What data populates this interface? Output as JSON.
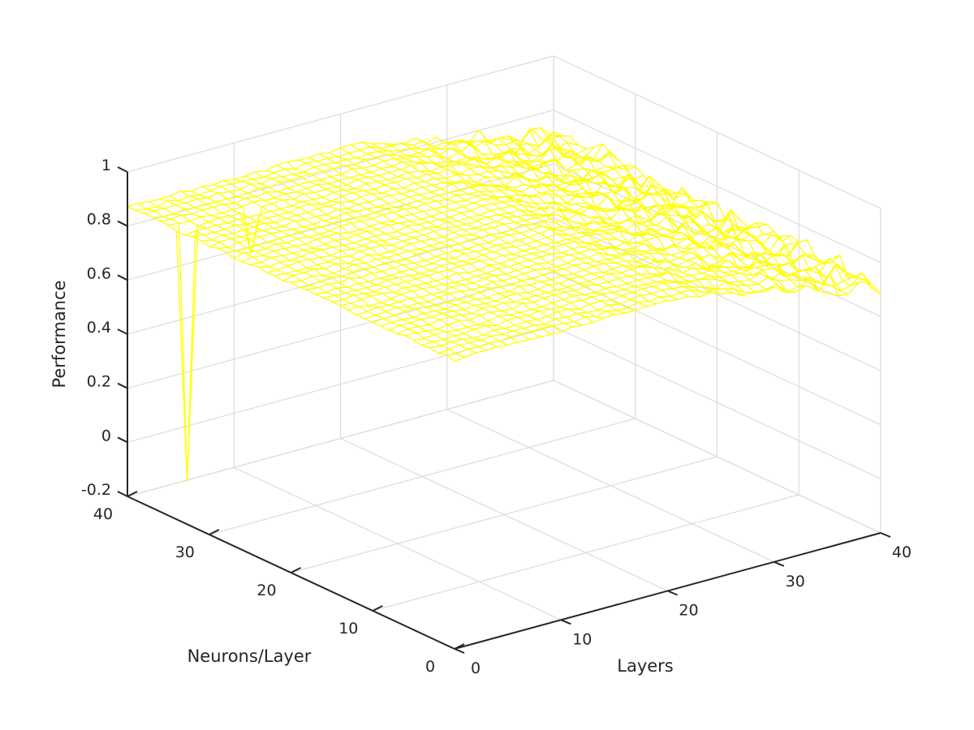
{
  "chart_data": {
    "type": "surface",
    "title": "",
    "xlabel": "Layers",
    "ylabel": "Neurons/Layer",
    "zlabel": "Performance",
    "xlim": [
      0,
      40
    ],
    "ylim": [
      0,
      40
    ],
    "zlim": [
      -0.2,
      1
    ],
    "x_ticks": [
      "0",
      "10",
      "20",
      "30",
      "40"
    ],
    "y_ticks": [
      "0",
      "10",
      "20",
      "30",
      "40"
    ],
    "z_ticks": [
      "-0.2",
      "0",
      "0.2",
      "0.4",
      "0.6",
      "0.8",
      "1"
    ],
    "x_tick_values": [
      0,
      10,
      20,
      30,
      40
    ],
    "y_tick_values": [
      0,
      10,
      20,
      30,
      40
    ],
    "z_tick_values": [
      -0.2,
      0,
      0.2,
      0.4,
      0.6,
      0.8,
      1
    ],
    "grid": true,
    "style": "mesh",
    "surface_color": "#ffff00",
    "grid_color": "#dcdcdc",
    "axis_color": "#262626",
    "grid_resolution": 40,
    "plateau_value": 0.87,
    "high_layers_value": 0.72,
    "min_point": {
      "layers": 1,
      "neurons": 34,
      "value": -0.07
    },
    "secondary_dip": {
      "layers": 7,
      "neurons": 34,
      "value": 0.71
    }
  }
}
